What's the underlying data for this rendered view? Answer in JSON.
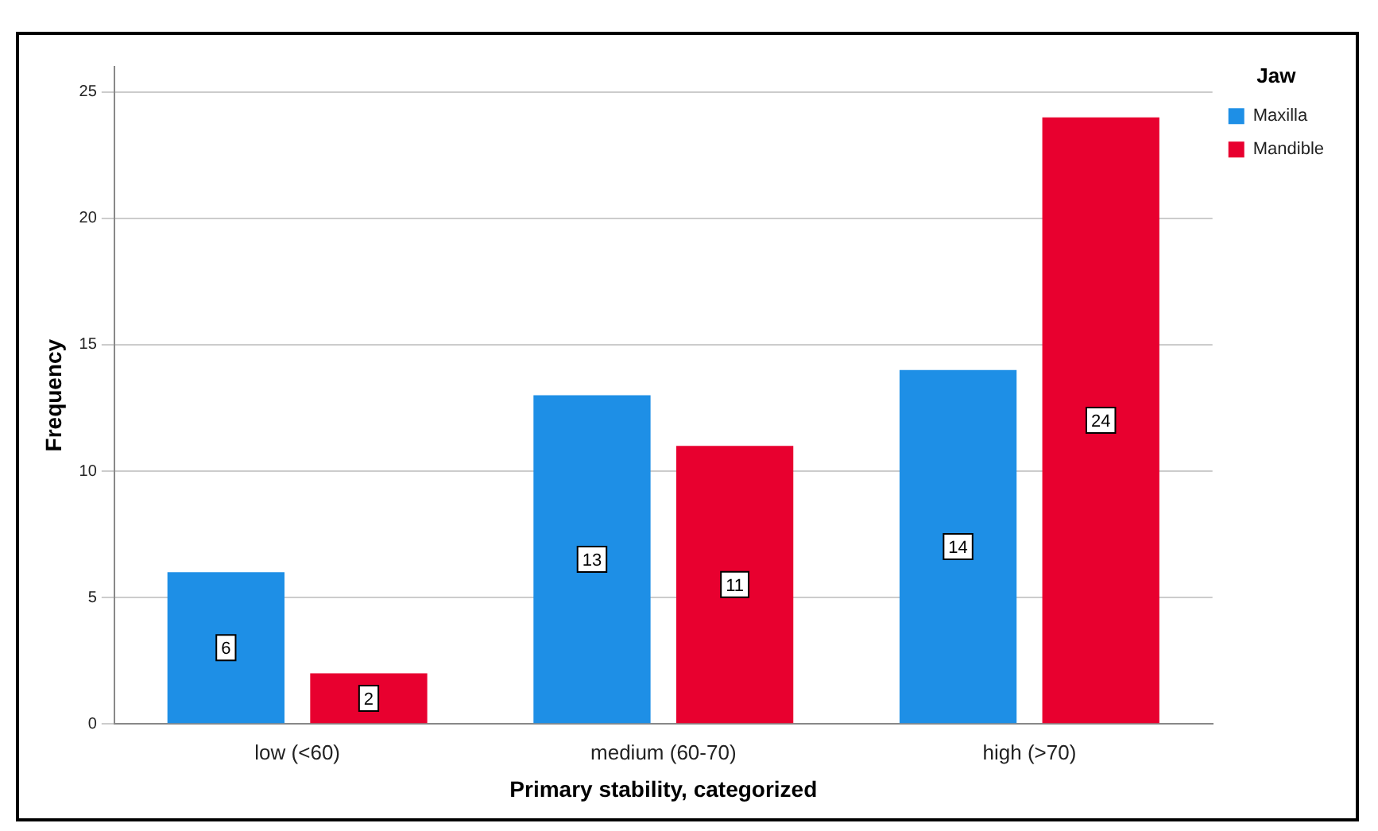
{
  "chart_data": {
    "type": "bar",
    "xlabel": "Primary stability, categorized",
    "ylabel": "Frequency",
    "legend_title": "Jaw",
    "categories": [
      "low (<60)",
      "medium (60-70)",
      "high (>70)"
    ],
    "series": [
      {
        "name": "Maxilla",
        "color": "#1e8fe6",
        "values": [
          6,
          13,
          14
        ]
      },
      {
        "name": "Mandible",
        "color": "#e8002f",
        "values": [
          2,
          11,
          24
        ]
      }
    ],
    "ylim": [
      0,
      26
    ],
    "yticks": [
      0,
      5,
      10,
      15,
      20,
      25
    ],
    "grid": "y",
    "legend": "top right",
    "data_labels": true
  }
}
